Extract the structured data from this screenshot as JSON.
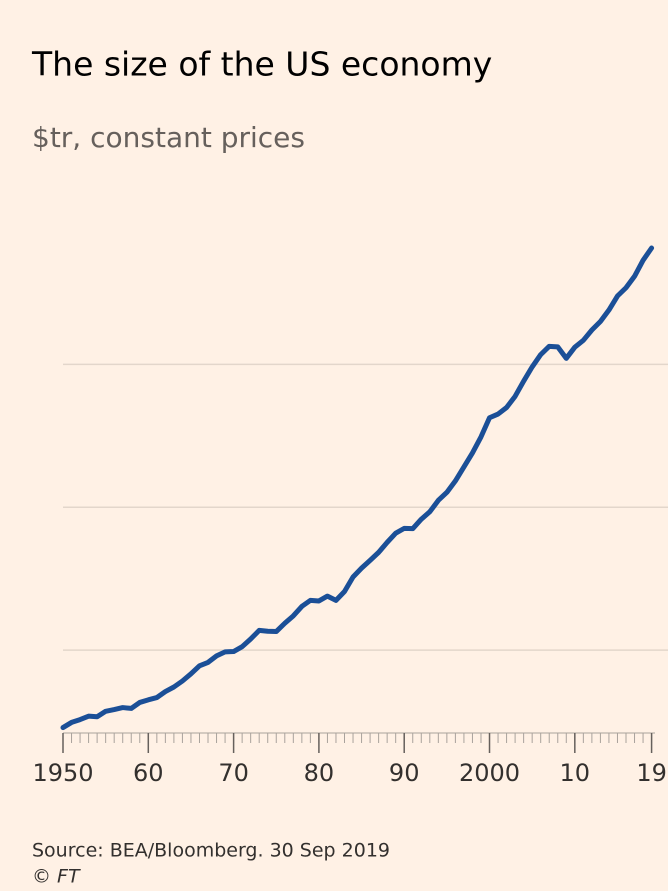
{
  "chart_data": {
    "type": "line",
    "title": "The size of the US economy",
    "subtitle": "$tr, constant prices",
    "source": "Source: BEA/Bloomberg. 30 Sep 2019",
    "copyright": "© FT",
    "x": [
      1950,
      1951,
      1952,
      1953,
      1954,
      1955,
      1956,
      1957,
      1958,
      1959,
      1960,
      1961,
      1962,
      1963,
      1964,
      1965,
      1966,
      1967,
      1968,
      1969,
      1970,
      1971,
      1972,
      1973,
      1974,
      1975,
      1976,
      1977,
      1978,
      1979,
      1980,
      1981,
      1982,
      1983,
      1984,
      1985,
      1986,
      1987,
      1988,
      1989,
      1990,
      1991,
      1992,
      1993,
      1994,
      1995,
      1996,
      1997,
      1998,
      1999,
      2000,
      2001,
      2002,
      2003,
      2004,
      2005,
      2006,
      2007,
      2008,
      2009,
      2010,
      2011,
      2012,
      2013,
      2014,
      2015,
      2016,
      2017,
      2018,
      2019
    ],
    "series": [
      {
        "name": "US GDP",
        "color": "#1b4f97",
        "values": [
          2.29,
          2.47,
          2.57,
          2.69,
          2.67,
          2.86,
          2.92,
          2.99,
          2.96,
          3.17,
          3.26,
          3.34,
          3.55,
          3.71,
          3.92,
          4.17,
          4.45,
          4.57,
          4.8,
          4.94,
          4.95,
          5.12,
          5.39,
          5.69,
          5.66,
          5.65,
          5.94,
          6.2,
          6.53,
          6.74,
          6.72,
          6.89,
          6.74,
          7.05,
          7.56,
          7.87,
          8.14,
          8.42,
          8.77,
          9.09,
          9.26,
          9.25,
          9.58,
          9.84,
          10.24,
          10.52,
          10.92,
          11.41,
          11.9,
          12.46,
          13.13,
          13.26,
          13.49,
          13.88,
          14.41,
          14.91,
          15.34,
          15.63,
          15.61,
          15.21,
          15.6,
          15.84,
          16.2,
          16.5,
          16.9,
          17.39,
          17.68,
          18.08,
          18.64,
          19.07
        ]
      }
    ],
    "xlim": [
      1950,
      2019.4
    ],
    "xticks": [
      1950,
      {
        "value": 1960,
        "label": "60"
      },
      {
        "value": 1970,
        "label": "70"
      },
      {
        "value": 1980,
        "label": "80"
      },
      {
        "value": 1990,
        "label": "90"
      },
      2000,
      {
        "value": 2010,
        "label": "10"
      },
      {
        "value": 2019,
        "label": "19"
      }
    ],
    "ylim": [
      2.1,
      19.7
    ],
    "yticks": [
      5,
      10,
      15
    ],
    "grid": true
  }
}
